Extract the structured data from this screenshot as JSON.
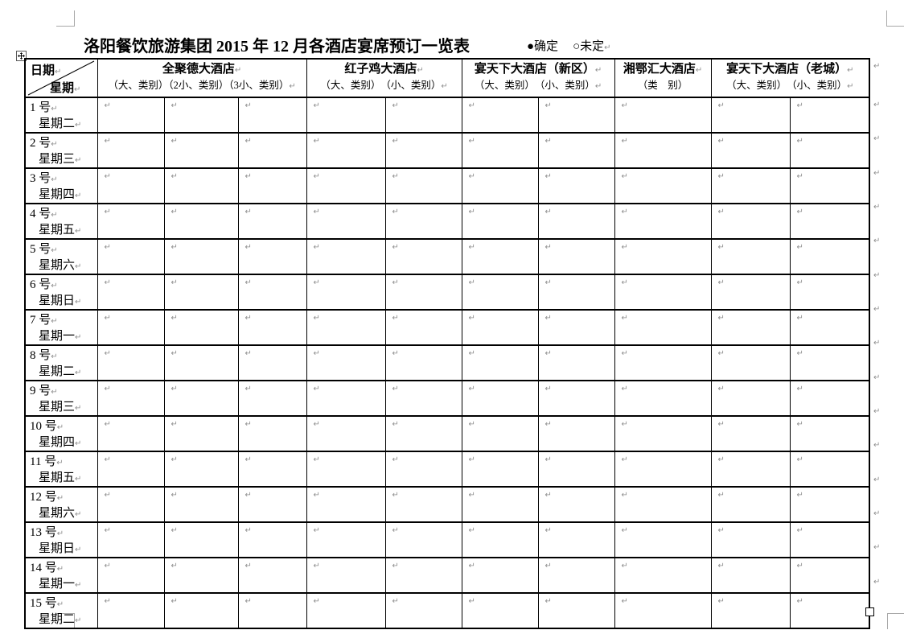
{
  "title": "洛阳餐饮旅游集团 2015 年 12 月各酒店宴席预订一览表",
  "legend": {
    "confirmed": "●确定",
    "undecided": "○未定"
  },
  "paragraph_mark": "↵",
  "table": {
    "corner_header": {
      "top": "日期",
      "bottom": "星期"
    },
    "hotels": [
      {
        "name": "全聚德大酒店",
        "sub": "（大、类别）（2小、类别）（3小、类别）",
        "cols": 3,
        "sub_has_mark": true
      },
      {
        "name": "红子鸡大酒店",
        "sub": "（大、类别）　（小、类别）",
        "cols": 2,
        "sub_has_mark": true
      },
      {
        "name": "宴天下大酒店（新区）",
        "sub": "（大、类别）　（小、类别）",
        "cols": 2,
        "sub_has_mark": true
      },
      {
        "name": "湘鄂汇大酒店",
        "sub": "（类　别）",
        "cols": 1,
        "sub_has_mark": false
      },
      {
        "name": "宴天下大酒店（老城）",
        "sub": "（大、类别）　（小、类别）",
        "cols": 2,
        "sub_has_mark": true
      }
    ],
    "rows": [
      {
        "day": "1 号",
        "weekday": "星期二"
      },
      {
        "day": "2 号",
        "weekday": "星期三"
      },
      {
        "day": "3 号",
        "weekday": "星期四"
      },
      {
        "day": "4 号",
        "weekday": "星期五"
      },
      {
        "day": "5 号",
        "weekday": "星期六"
      },
      {
        "day": "6 号",
        "weekday": "星期日"
      },
      {
        "day": "7 号",
        "weekday": "星期一"
      },
      {
        "day": "8 号",
        "weekday": "星期二"
      },
      {
        "day": "9 号",
        "weekday": "星期三"
      },
      {
        "day": "10 号",
        "weekday": "星期四"
      },
      {
        "day": "11 号",
        "weekday": "星期五"
      },
      {
        "day": "12 号",
        "weekday": "星期六"
      },
      {
        "day": "13 号",
        "weekday": "星期日"
      },
      {
        "day": "14 号",
        "weekday": "星期一"
      },
      {
        "day": "15 号",
        "weekday": "星期二"
      }
    ],
    "data_columns": 10
  },
  "colors": {
    "text": "#000000",
    "formatting_mark": "#8f8f8f",
    "crop_mark": "#a9a9a9"
  }
}
